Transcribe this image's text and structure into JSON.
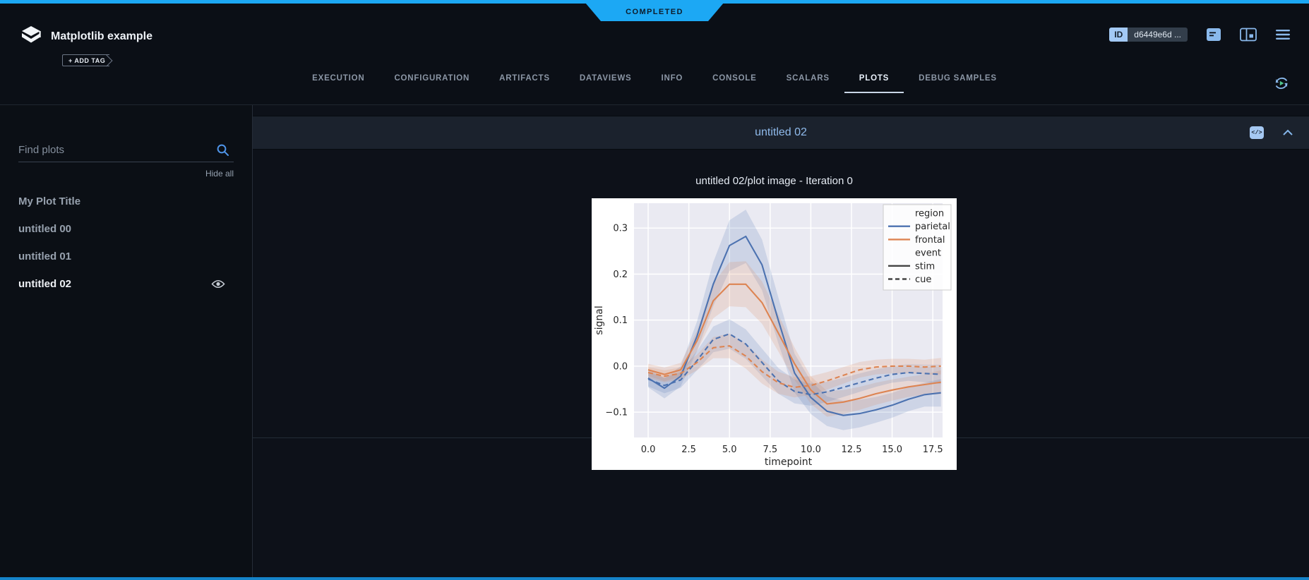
{
  "accent_color": "#1ca8f4",
  "status_banner": {
    "label": "COMPLETED"
  },
  "header": {
    "app_icon": "experiment-logo-icon",
    "title": "Matplotlib example",
    "add_tag_label": "+ ADD TAG",
    "id_badge": {
      "label": "ID",
      "value": "d6449e6d ..."
    },
    "action_icons": [
      "console-log-icon",
      "side-panel-icon",
      "menu-icon"
    ]
  },
  "tabs": {
    "items": [
      "EXECUTION",
      "CONFIGURATION",
      "ARTIFACTS",
      "DATAVIEWS",
      "INFO",
      "CONSOLE",
      "SCALARS",
      "PLOTS",
      "DEBUG SAMPLES"
    ],
    "active": "PLOTS"
  },
  "sidebar": {
    "search_placeholder": "Find plots",
    "hide_all_label": "Hide all",
    "items": [
      {
        "label": "My Plot Title",
        "selected": false
      },
      {
        "label": "untitled 00",
        "selected": false
      },
      {
        "label": "untitled 01",
        "selected": false
      },
      {
        "label": "untitled 02",
        "selected": true
      }
    ]
  },
  "main": {
    "panel_title": "untitled 02",
    "code_glyph": "</>"
  },
  "chart_data": {
    "type": "line",
    "title": "untitled 02/plot image - Iteration 0",
    "xlabel": "timepoint",
    "ylabel": "signal",
    "xlim": [
      -0.87,
      18.1
    ],
    "ylim": [
      -0.155,
      0.354
    ],
    "xticks": [
      0,
      2.5,
      5,
      7.5,
      10,
      12.5,
      15,
      17.5
    ],
    "yticks": [
      -0.1,
      0,
      0.1,
      0.2,
      0.3
    ],
    "grid": true,
    "x": [
      0,
      1,
      2,
      3,
      4,
      5,
      6,
      7,
      8,
      9,
      10,
      11,
      12,
      13,
      14,
      15,
      16,
      17,
      18
    ],
    "series": [
      {
        "name": "parietal/stim",
        "color": "#4C72B0",
        "dash": "solid",
        "values": [
          -0.026,
          -0.048,
          -0.022,
          0.065,
          0.178,
          0.262,
          0.282,
          0.22,
          0.1,
          -0.015,
          -0.068,
          -0.098,
          -0.107,
          -0.103,
          -0.095,
          -0.085,
          -0.072,
          -0.062,
          -0.058
        ],
        "ci": [
          0.02,
          0.022,
          0.022,
          0.032,
          0.048,
          0.055,
          0.058,
          0.055,
          0.05,
          0.042,
          0.036,
          0.032,
          0.032,
          0.03,
          0.028,
          0.027,
          0.026,
          0.026,
          0.03
        ]
      },
      {
        "name": "frontal/stim",
        "color": "#DD8452",
        "dash": "solid",
        "values": [
          -0.008,
          -0.018,
          -0.008,
          0.055,
          0.142,
          0.178,
          0.178,
          0.138,
          0.072,
          0.005,
          -0.052,
          -0.082,
          -0.078,
          -0.07,
          -0.06,
          -0.052,
          -0.045,
          -0.04,
          -0.035
        ],
        "ci": [
          0.013,
          0.015,
          0.015,
          0.022,
          0.038,
          0.048,
          0.05,
          0.046,
          0.04,
          0.035,
          0.03,
          0.028,
          0.026,
          0.025,
          0.024,
          0.023,
          0.022,
          0.022,
          0.026
        ]
      },
      {
        "name": "parietal/cue",
        "color": "#4C72B0",
        "dash": "dashed",
        "values": [
          -0.028,
          -0.042,
          -0.03,
          0.012,
          0.058,
          0.07,
          0.048,
          0.008,
          -0.032,
          -0.055,
          -0.062,
          -0.056,
          -0.046,
          -0.036,
          -0.026,
          -0.018,
          -0.014,
          -0.016,
          -0.018
        ],
        "ci": [
          0.016,
          0.017,
          0.017,
          0.021,
          0.028,
          0.032,
          0.032,
          0.03,
          0.028,
          0.026,
          0.024,
          0.022,
          0.021,
          0.02,
          0.019,
          0.018,
          0.018,
          0.019,
          0.021
        ]
      },
      {
        "name": "frontal/cue",
        "color": "#DD8452",
        "dash": "dashed",
        "values": [
          -0.014,
          -0.022,
          -0.016,
          0.008,
          0.04,
          0.044,
          0.022,
          -0.012,
          -0.036,
          -0.046,
          -0.042,
          -0.032,
          -0.02,
          -0.008,
          -0.002,
          0,
          0,
          -0.002,
          0
        ],
        "ci": [
          0.012,
          0.013,
          0.013,
          0.017,
          0.023,
          0.027,
          0.027,
          0.026,
          0.024,
          0.022,
          0.02,
          0.019,
          0.018,
          0.017,
          0.016,
          0.016,
          0.016,
          0.016,
          0.018
        ]
      }
    ],
    "legend": {
      "position": "upper right",
      "entries": [
        {
          "label": "region",
          "type": "header"
        },
        {
          "label": "parietal",
          "color": "#4C72B0",
          "dash": "solid"
        },
        {
          "label": "frontal",
          "color": "#DD8452",
          "dash": "solid"
        },
        {
          "label": "event",
          "type": "header"
        },
        {
          "label": "stim",
          "color": "#444444",
          "dash": "solid"
        },
        {
          "label": "cue",
          "color": "#444444",
          "dash": "dashed"
        }
      ]
    },
    "style": {
      "figure_bg": "#ffffff",
      "axes_bg": "#eaeaf2",
      "grid_color": "#ffffff",
      "tick_color": "#262626"
    }
  }
}
